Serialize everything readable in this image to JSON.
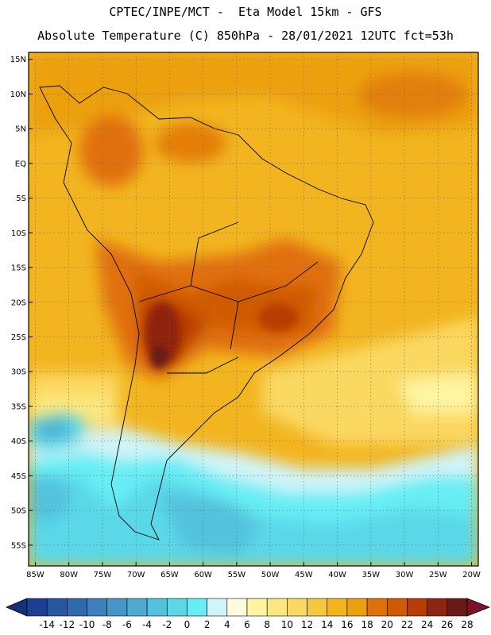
{
  "header": {
    "line1": "CPTEC/INPE/MCT -  Eta Model 15km - GFS",
    "line2": "Absolute Temperature (C) 850hPa - 28/01/2021 12UTC fct=53h"
  },
  "map": {
    "lat_range": [
      -58,
      16
    ],
    "lon_range": [
      -86,
      -19
    ],
    "lat_ticks": [
      {
        "v": 15,
        "label": "15N"
      },
      {
        "v": 10,
        "label": "10N"
      },
      {
        "v": 5,
        "label": "5N"
      },
      {
        "v": 0,
        "label": "EQ"
      },
      {
        "v": -5,
        "label": "5S"
      },
      {
        "v": -10,
        "label": "10S"
      },
      {
        "v": -15,
        "label": "15S"
      },
      {
        "v": -20,
        "label": "20S"
      },
      {
        "v": -25,
        "label": "25S"
      },
      {
        "v": -30,
        "label": "30S"
      },
      {
        "v": -35,
        "label": "35S"
      },
      {
        "v": -40,
        "label": "40S"
      },
      {
        "v": -45,
        "label": "45S"
      },
      {
        "v": -50,
        "label": "50S"
      },
      {
        "v": -55,
        "label": "55S"
      }
    ],
    "lon_ticks": [
      {
        "v": -85,
        "label": "85W"
      },
      {
        "v": -80,
        "label": "80W"
      },
      {
        "v": -75,
        "label": "75W"
      },
      {
        "v": -70,
        "label": "70W"
      },
      {
        "v": -65,
        "label": "65W"
      },
      {
        "v": -60,
        "label": "60W"
      },
      {
        "v": -55,
        "label": "55W"
      },
      {
        "v": -50,
        "label": "50W"
      },
      {
        "v": -45,
        "label": "45W"
      },
      {
        "v": -40,
        "label": "40W"
      },
      {
        "v": -35,
        "label": "35W"
      },
      {
        "v": -30,
        "label": "30W"
      },
      {
        "v": -25,
        "label": "25W"
      },
      {
        "v": -20,
        "label": "20W"
      }
    ],
    "gridlines": true
  },
  "colorbar": {
    "ticks": [
      "-14",
      "-12",
      "-10",
      "-8",
      "-6",
      "-4",
      "-2",
      "0",
      "2",
      "4",
      "6",
      "8",
      "10",
      "12",
      "14",
      "16",
      "18",
      "20",
      "22",
      "24",
      "26",
      "28"
    ],
    "colors": [
      "#1b3f93",
      "#27579f",
      "#2f6aae",
      "#3c80bc",
      "#4696c6",
      "#4eaad2",
      "#52c2de",
      "#5ad8e8",
      "#66eef4",
      "#d0f4f8",
      "#fefae0",
      "#fef5a0",
      "#fde880",
      "#fbd860",
      "#f6c840",
      "#f2b520",
      "#eca010",
      "#e07008",
      "#d05a05",
      "#b83c04",
      "#8f2410",
      "#6a1a14"
    ]
  }
}
